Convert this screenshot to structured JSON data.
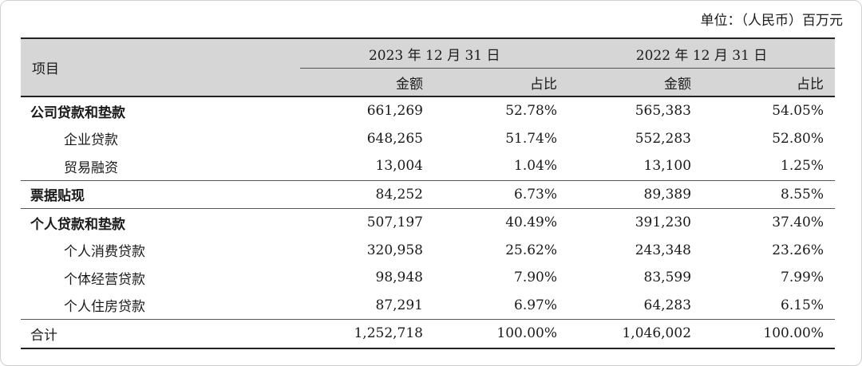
{
  "unit_label": "单位：（人民币）百万元",
  "header": {
    "item": "项目",
    "years": [
      "2023 年 12 月 31 日",
      "2022 年 12 月 31 日"
    ],
    "amount": "金额",
    "share": "占比"
  },
  "rows": [
    {
      "label": "公司贷款和垫款",
      "v2023": "661,269",
      "p2023": "52.78%",
      "v2022": "565,383",
      "p2022": "54.05%"
    },
    {
      "label": "企业贷款",
      "v2023": "648,265",
      "p2023": "51.74%",
      "v2022": "552,283",
      "p2022": "52.80%"
    },
    {
      "label": "贸易融资",
      "v2023": "13,004",
      "p2023": "1.04%",
      "v2022": "13,100",
      "p2022": "1.25%"
    },
    {
      "label": "票据贴现",
      "v2023": "84,252",
      "p2023": "6.73%",
      "v2022": "89,389",
      "p2022": "8.55%"
    },
    {
      "label": "个人贷款和垫款",
      "v2023": "507,197",
      "p2023": "40.49%",
      "v2022": "391,230",
      "p2022": "37.40%"
    },
    {
      "label": "个人消费贷款",
      "v2023": "320,958",
      "p2023": "25.62%",
      "v2022": "243,348",
      "p2022": "23.26%"
    },
    {
      "label": "个体经营贷款",
      "v2023": "98,948",
      "p2023": "7.90%",
      "v2022": "83,599",
      "p2022": "7.99%"
    },
    {
      "label": "个人住房贷款",
      "v2023": "87,291",
      "p2023": "6.97%",
      "v2022": "64,283",
      "p2022": "6.15%"
    },
    {
      "label": "合计",
      "v2023": "1,252,718",
      "p2023": "100.00%",
      "v2022": "1,046,002",
      "p2022": "100.00%"
    }
  ]
}
